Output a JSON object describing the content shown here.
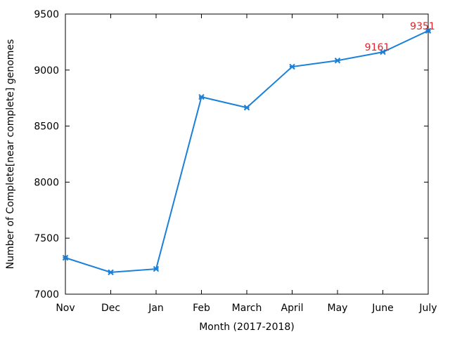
{
  "chart_data": {
    "type": "line",
    "title": "",
    "xlabel": "Month (2017-2018)",
    "ylabel": "Number of Complete[near complete] genomes",
    "categories": [
      "Nov",
      "Dec",
      "Jan",
      "Feb",
      "March",
      "April",
      "May",
      "June",
      "July"
    ],
    "series": [
      {
        "values": [
          7325,
          7195,
          7225,
          8760,
          8665,
          9030,
          9085,
          9161,
          9351
        ]
      }
    ],
    "ylim": [
      7000,
      9500
    ],
    "yticks": [
      "7000",
      "7500",
      "8000",
      "8500",
      "9000",
      "9500"
    ],
    "grid": false,
    "legend": "none",
    "annotations": [
      {
        "category": "June",
        "value": 9161,
        "text": "9161"
      },
      {
        "category": "July",
        "value": 9351,
        "text": "9351"
      }
    ],
    "colors": {
      "line": "#1a80d8",
      "annotation": "#e8202a",
      "axis": "#000000"
    }
  }
}
